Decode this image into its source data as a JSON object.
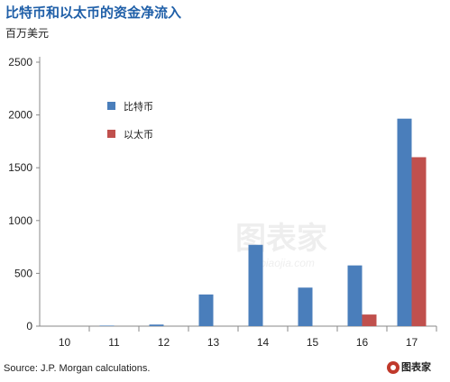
{
  "header": {
    "title": "比特币和以太币的资金净流入",
    "unit": "百万美元"
  },
  "footer": {
    "source": "Source: J.P. Morgan calculations.",
    "logo_text": "图表家"
  },
  "watermark": {
    "text": "图表家",
    "sub": "Tubiaojia.com"
  },
  "colors": {
    "bitcoin": "#4a7ebb",
    "ether": "#c0504d",
    "title": "#1f5fa8",
    "grid": "#d9d9d9",
    "axis": "#888888"
  },
  "chart_data": {
    "type": "bar",
    "categories": [
      "10",
      "11",
      "12",
      "13",
      "14",
      "15",
      "16",
      "17"
    ],
    "series": [
      {
        "name": "比特币",
        "values": [
          0,
          5,
          15,
          300,
          770,
          365,
          575,
          1965
        ]
      },
      {
        "name": "以太币",
        "values": [
          0,
          0,
          0,
          0,
          0,
          0,
          110,
          1600
        ]
      }
    ],
    "yticks": [
      0,
      500,
      1000,
      1500,
      2000,
      2500
    ],
    "ylim": [
      0,
      2500
    ],
    "xlabel": "",
    "ylabel": "",
    "grid": false,
    "legend": "inside-upper-left"
  }
}
